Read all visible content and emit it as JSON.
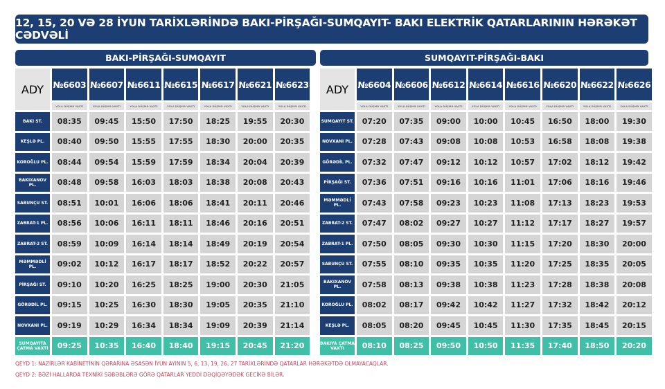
{
  "title": "12, 15, 20 VƏ 28 İYUN TARİXLƏRİNDƏ BAKI-PİRŞAĞI-SUMQAYIT- BAKI ELEKTRİK QATARLARININ HƏRƏKƏT CƏDVƏLİ",
  "logo_text": "ADY",
  "sub_label": "YOLA DÜŞMƏ VAXTI",
  "left": {
    "heading": "BAKI-PİRŞAĞI-SUMQAYIT",
    "trains": [
      "№6603",
      "№6607",
      "№6611",
      "№6615",
      "№6617",
      "№6621",
      "№6623"
    ],
    "rows": [
      {
        "station": "BAKI ST.",
        "times": [
          "08:35",
          "09:45",
          "15:50",
          "17:50",
          "18:25",
          "19:55",
          "20:30"
        ]
      },
      {
        "station": "KEŞLƏ PL.",
        "times": [
          "08:40",
          "09:50",
          "15:55",
          "17:55",
          "18:30",
          "20:00",
          "20:35"
        ]
      },
      {
        "station": "KOROĞLU PL.",
        "times": [
          "08:44",
          "09:54",
          "15:59",
          "17:59",
          "18:34",
          "20:04",
          "20:39"
        ]
      },
      {
        "station": "BAKIXANOV PL.",
        "times": [
          "08:48",
          "09:58",
          "16:03",
          "18:03",
          "18:38",
          "20:08",
          "20:43"
        ]
      },
      {
        "station": "SABUNÇU ST.",
        "times": [
          "08:51",
          "10:01",
          "16:06",
          "18:06",
          "18:41",
          "20:11",
          "20:46"
        ]
      },
      {
        "station": "ZABRAT-1 PL.",
        "times": [
          "08:56",
          "10:06",
          "16:11",
          "18:11",
          "18:46",
          "20:16",
          "20:51"
        ]
      },
      {
        "station": "ZABRAT-2 ST.",
        "times": [
          "08:59",
          "10:09",
          "16:14",
          "18:14",
          "18:49",
          "20:19",
          "20:54"
        ]
      },
      {
        "station": "MƏMMƏDLİ PL.",
        "times": [
          "09:02",
          "10:12",
          "16:17",
          "18:17",
          "18:52",
          "20:22",
          "20:57"
        ]
      },
      {
        "station": "PİRŞAĞI ST.",
        "times": [
          "09:10",
          "10:20",
          "16:25",
          "18:25",
          "19:00",
          "20:30",
          "21:05"
        ]
      },
      {
        "station": "GÖRƏDİL PL.",
        "times": [
          "09:15",
          "10:25",
          "16:30",
          "18:30",
          "19:05",
          "20:35",
          "21:10"
        ]
      },
      {
        "station": "NOVXANI PL.",
        "times": [
          "09:19",
          "10:29",
          "16:34",
          "18:34",
          "19:09",
          "20:39",
          "21:14"
        ]
      }
    ],
    "arrival": {
      "station": "SUMQAYITA ÇATMA VAXTI",
      "times": [
        "09:25",
        "10:35",
        "16:40",
        "18:40",
        "19:15",
        "20:45",
        "21:20"
      ]
    }
  },
  "right": {
    "heading": "SUMQAYIT-PİRŞAĞI-BAKI",
    "trains": [
      "№6604",
      "№6606",
      "№6612",
      "№6614",
      "№6616",
      "№6620",
      "№6622",
      "№6626"
    ],
    "rows": [
      {
        "station": "SUMQAYIT ST.",
        "times": [
          "07:20",
          "07:35",
          "09:00",
          "10:00",
          "10:45",
          "16:50",
          "18:00",
          "19:30"
        ]
      },
      {
        "station": "NOVXANI PL.",
        "times": [
          "07:28",
          "07:43",
          "09:08",
          "10:08",
          "10:53",
          "16:58",
          "18:08",
          "19:38"
        ]
      },
      {
        "station": "GÖRƏDİL PL.",
        "times": [
          "07:32",
          "07:47",
          "09:12",
          "10:12",
          "10:57",
          "17:02",
          "18:12",
          "19:42"
        ]
      },
      {
        "station": "PİRŞAĞI ST.",
        "times": [
          "07:36",
          "07:51",
          "09:16",
          "10:16",
          "11:01",
          "17:06",
          "18:16",
          "19:46"
        ]
      },
      {
        "station": "MƏMMƏDLİ PL.",
        "times": [
          "07:43",
          "07:58",
          "09:23",
          "10:23",
          "11:08",
          "17:13",
          "18:23",
          "19:53"
        ]
      },
      {
        "station": "ZABRAT-2 ST.",
        "times": [
          "07:47",
          "08:02",
          "09:27",
          "10:27",
          "11:12",
          "17:17",
          "18:27",
          "19:57"
        ]
      },
      {
        "station": "ZABRAT-1 PL.",
        "times": [
          "07:50",
          "08:05",
          "09:30",
          "10:30",
          "11:15",
          "17:20",
          "18:30",
          "20:00"
        ]
      },
      {
        "station": "SABUNÇU ST.",
        "times": [
          "07:55",
          "08:10",
          "09:35",
          "10:35",
          "11:20",
          "17:25",
          "18:35",
          "20:05"
        ]
      },
      {
        "station": "BAKIXANOV PL.",
        "times": [
          "07:58",
          "08:13",
          "09:38",
          "10:38",
          "11:23",
          "17:28",
          "18:38",
          "20:08"
        ]
      },
      {
        "station": "KOROĞLU PL.",
        "times": [
          "08:02",
          "08:17",
          "09:42",
          "10:42",
          "11:27",
          "17:32",
          "18:42",
          "20:12"
        ]
      },
      {
        "station": "KEŞLƏ PL.",
        "times": [
          "08:05",
          "08:20",
          "09:45",
          "10:45",
          "11:30",
          "17:35",
          "18:45",
          "20:15"
        ]
      }
    ],
    "arrival": {
      "station": "BAKIYA ÇATMA VAXTI",
      "times": [
        "08:10",
        "08:25",
        "09:50",
        "10:50",
        "11:35",
        "17:40",
        "18:50",
        "20:20"
      ]
    }
  },
  "notes": [
    "QEYD 1:  NAZİRLƏR KABİNETİNİN QƏRARINA ƏSASƏN İYUN AYININ 5, 6, 13, 19, 26, 27 TARİXLƏRİNDƏ QATARLAR HƏRƏKƏTDƏ OLMAYACAQLAR.",
    "QEYD 2: BƏZİ HALLARDA TEXNİKİ SƏBƏBLƏRƏ GÖRƏ QATARLAR YEDDİ DƏQİQƏYƏDƏK GECİKƏ BİLƏR."
  ]
}
